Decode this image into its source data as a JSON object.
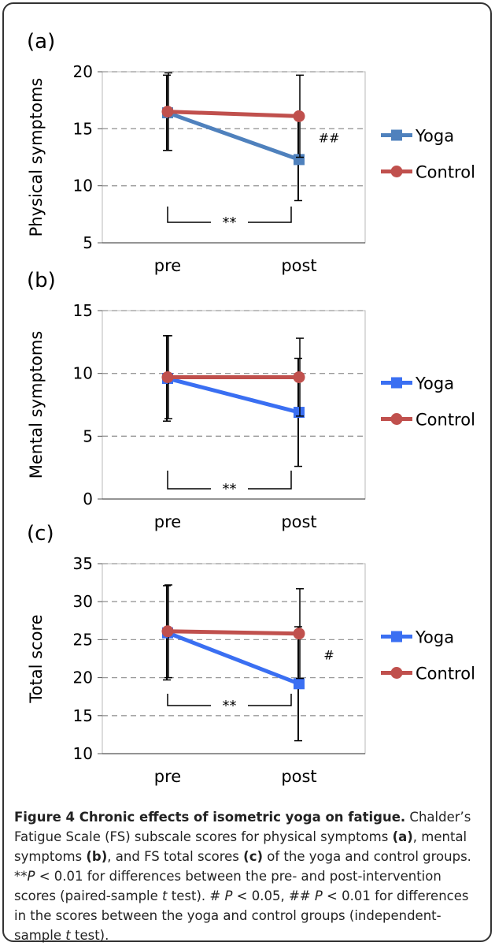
{
  "chart_data": [
    {
      "type": "line",
      "panel_label": "(a)",
      "ylabel": "Physical symptoms",
      "categories": [
        "pre",
        "post"
      ],
      "ylim": [
        5,
        20
      ],
      "yticks": [
        "5",
        "10",
        "15",
        "20"
      ],
      "grid": true,
      "legend_position": "right",
      "series": [
        {
          "name": "Yoga",
          "values": [
            16.4,
            12.3
          ],
          "error": [
            3.3,
            3.6
          ],
          "color": "#4F81BD",
          "marker": "square"
        },
        {
          "name": "Control",
          "values": [
            16.5,
            16.1
          ],
          "error": [
            3.4,
            3.6
          ],
          "color": "#C0504D",
          "marker": "circle"
        }
      ],
      "annotations": {
        "between_groups": "##",
        "paired": "**"
      }
    },
    {
      "type": "line",
      "panel_label": "(b)",
      "ylabel": "Mental symptoms",
      "categories": [
        "pre",
        "post"
      ],
      "ylim": [
        0,
        15
      ],
      "yticks": [
        "0",
        "5",
        "10",
        "15"
      ],
      "grid": true,
      "legend_position": "right",
      "series": [
        {
          "name": "Yoga",
          "values": [
            9.6,
            6.9
          ],
          "error": [
            3.4,
            4.3
          ],
          "color": "#3A6FF2",
          "marker": "square"
        },
        {
          "name": "Control",
          "values": [
            9.7,
            9.7
          ],
          "error": [
            3.3,
            3.1
          ],
          "color": "#C0504D",
          "marker": "circle"
        }
      ],
      "annotations": {
        "between_groups": "",
        "paired": "**"
      }
    },
    {
      "type": "line",
      "panel_label": "(c)",
      "ylabel": "Total score",
      "categories": [
        "pre",
        "post"
      ],
      "ylim": [
        10,
        35
      ],
      "yticks": [
        "10",
        "15",
        "20",
        "25",
        "30",
        "35"
      ],
      "grid": true,
      "legend_position": "right",
      "series": [
        {
          "name": "Yoga",
          "values": [
            25.9,
            19.2
          ],
          "error": [
            6.2,
            7.5
          ],
          "color": "#3A6FF2",
          "marker": "square"
        },
        {
          "name": "Control",
          "values": [
            26.1,
            25.8
          ],
          "error": [
            6.1,
            5.9
          ],
          "color": "#C0504D",
          "marker": "circle"
        }
      ],
      "annotations": {
        "between_groups": "#",
        "paired": "**"
      }
    }
  ],
  "caption": {
    "title": "Figure 4 Chronic effects of isometric yoga on fatigue.",
    "t1": " Chalder’s Fatigue Scale (FS) subscale scores for physical symptoms ",
    "a": "(a)",
    "t2": ", mental symptoms ",
    "b": "(b)",
    "t3": ", and FS total scores ",
    "c": "(c)",
    "t4": " of the yoga and control groups. **",
    "p1": "P",
    "t5": " < 0.01 for differences between the pre- and post-intervention scores (paired-sample ",
    "t_1": "t",
    "t6": " test). # ",
    "p2": "P",
    "t7": " < 0.05, ## ",
    "p3": "P",
    "t8": " < 0.01 for differences in the scores between the yoga and control groups (independent-sample ",
    "t_2": "t",
    "t9": " test)."
  }
}
